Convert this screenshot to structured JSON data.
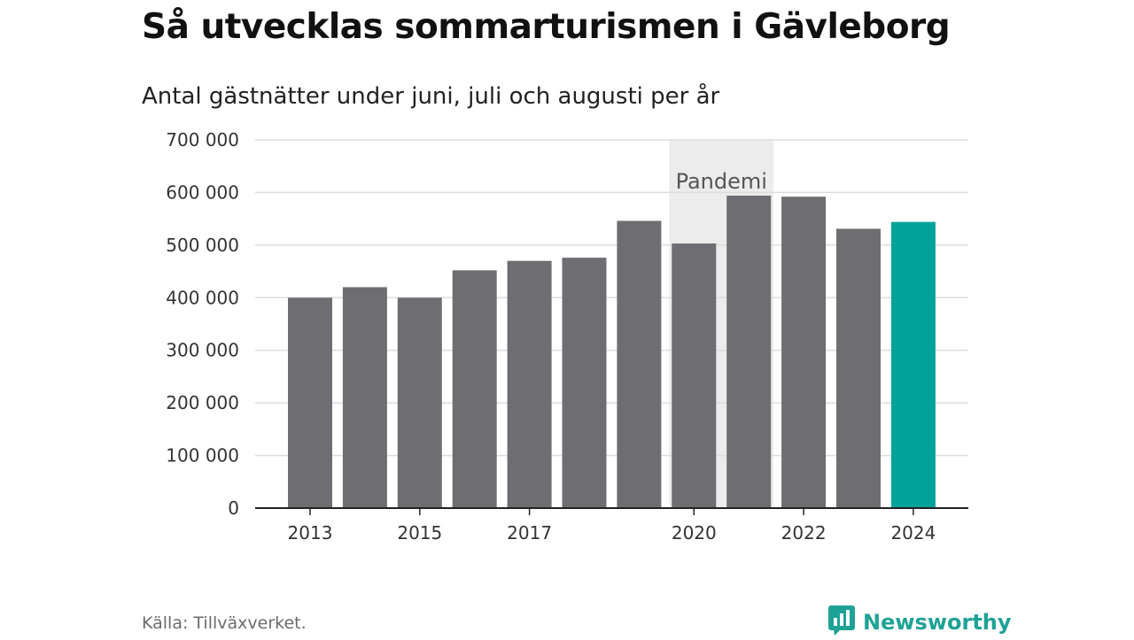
{
  "title": "Så utvecklas sommarturismen i Gävleborg",
  "subtitle": "Antal gästnätter under juni, juli och augusti per år",
  "source": "Källa: Tillväxverket.",
  "brand": "Newsworthy",
  "colors": {
    "bar": "#6e6d72",
    "highlight": "#00a39a",
    "band": "#ececec",
    "grid": "#dddddd",
    "axis": "#222222",
    "brand": "#1fa296"
  },
  "chart_data": {
    "type": "bar",
    "title": "Så utvecklas sommarturismen i Gävleborg",
    "subtitle": "Antal gästnätter under juni, juli och augusti per år",
    "categories": [
      "2013",
      "2014",
      "2015",
      "2016",
      "2017",
      "2018",
      "2019",
      "2020",
      "2021",
      "2022",
      "2023",
      "2024"
    ],
    "values": [
      400000,
      420000,
      400000,
      452000,
      470000,
      476000,
      546000,
      503000,
      594000,
      592000,
      531000,
      544000
    ],
    "highlight": "2024",
    "x_tick_labels": [
      "2013",
      "2015",
      "2017",
      "2020",
      "2022",
      "2024"
    ],
    "y_tick_labels": [
      "0",
      "100 000",
      "200 000",
      "300 000",
      "400 000",
      "500 000",
      "600 000",
      "700 000"
    ],
    "y_ticks": [
      0,
      100000,
      200000,
      300000,
      400000,
      500000,
      600000,
      700000
    ],
    "ylim": [
      0,
      700000
    ],
    "xlabel": "",
    "ylabel": "",
    "grid": true,
    "annotation": {
      "label": "Pandemi",
      "from": "2020",
      "to": "2021"
    }
  }
}
